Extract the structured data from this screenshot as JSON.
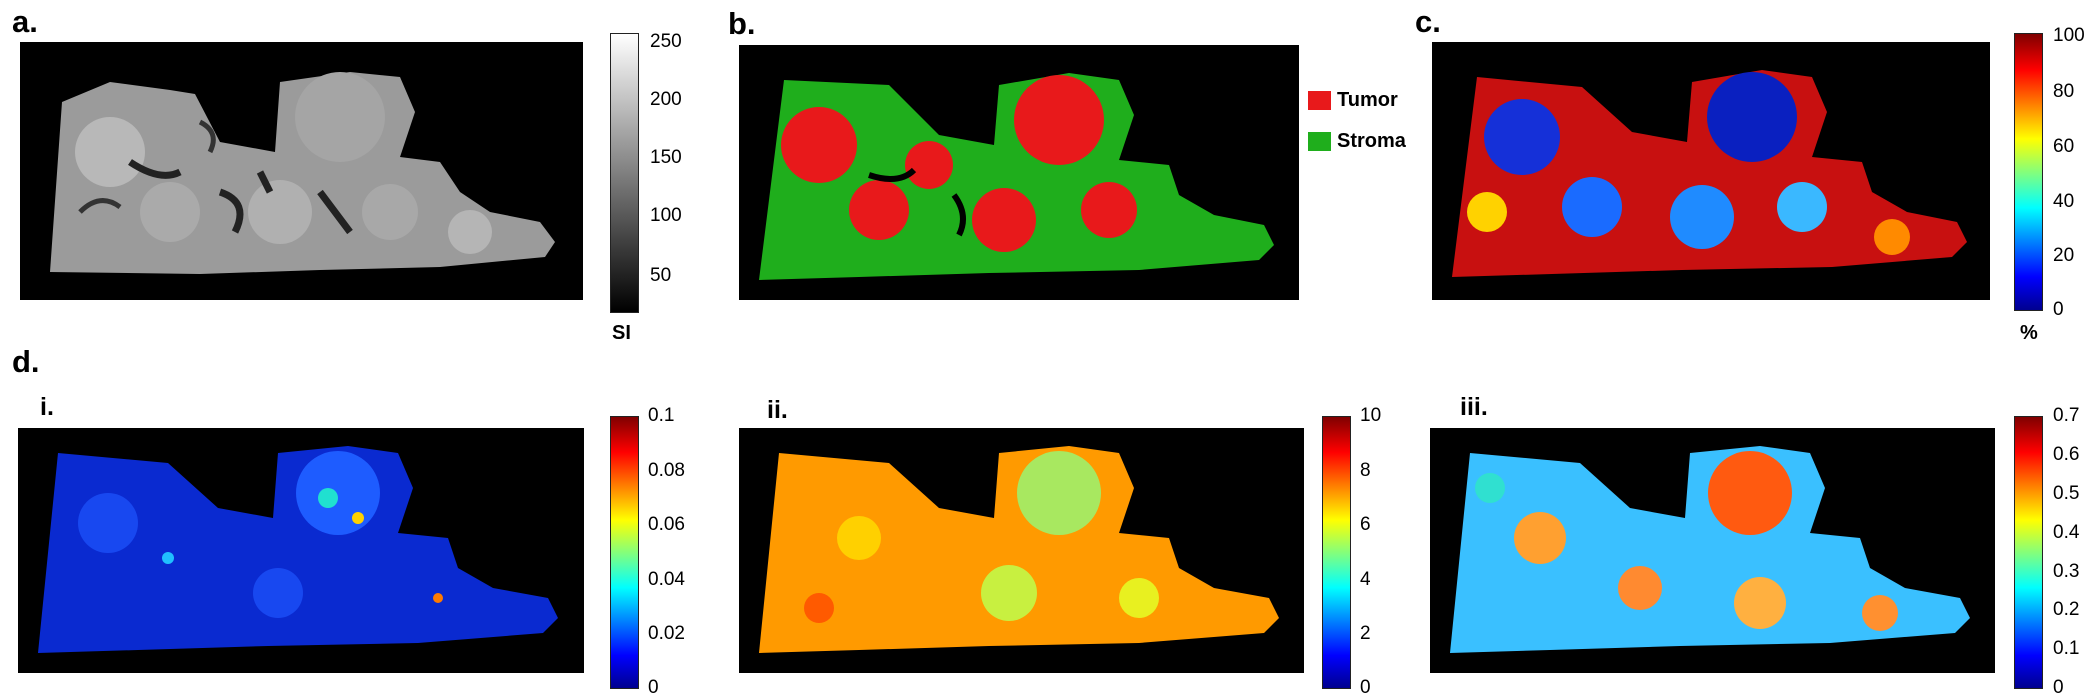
{
  "panels": {
    "a": {
      "label": "a.",
      "colorbar": {
        "ticks": [
          "250",
          "200",
          "150",
          "100",
          "50"
        ],
        "unit": "SI",
        "colormap": "gray"
      }
    },
    "b": {
      "label": "b.",
      "legend": [
        {
          "name": "Tumor",
          "color": "#e8191b"
        },
        {
          "name": "Stroma",
          "color": "#1fae1c"
        }
      ]
    },
    "c": {
      "label": "c.",
      "colorbar": {
        "ticks": [
          "100",
          "80",
          "60",
          "40",
          "20",
          "0"
        ],
        "unit": "%",
        "colormap": "jet"
      }
    },
    "d": {
      "label": "d.",
      "sub": {
        "i": {
          "label": "i.",
          "colorbar": {
            "ticks": [
              "0.1",
              "0.08",
              "0.06",
              "0.04",
              "0.02",
              "0"
            ],
            "colormap": "jet"
          }
        },
        "ii": {
          "label": "ii.",
          "colorbar": {
            "ticks": [
              "10",
              "8",
              "6",
              "4",
              "2",
              "0"
            ],
            "colormap": "jet"
          }
        },
        "iii": {
          "label": "iii.",
          "colorbar": {
            "ticks": [
              "0.7",
              "0.6",
              "0.5",
              "0.4",
              "0.3",
              "0.2",
              "0.1",
              "0"
            ],
            "colormap": "jet"
          }
        }
      }
    }
  },
  "colors": {
    "background": "#000000",
    "tumor": "#e8191b",
    "stroma": "#1fae1c"
  }
}
